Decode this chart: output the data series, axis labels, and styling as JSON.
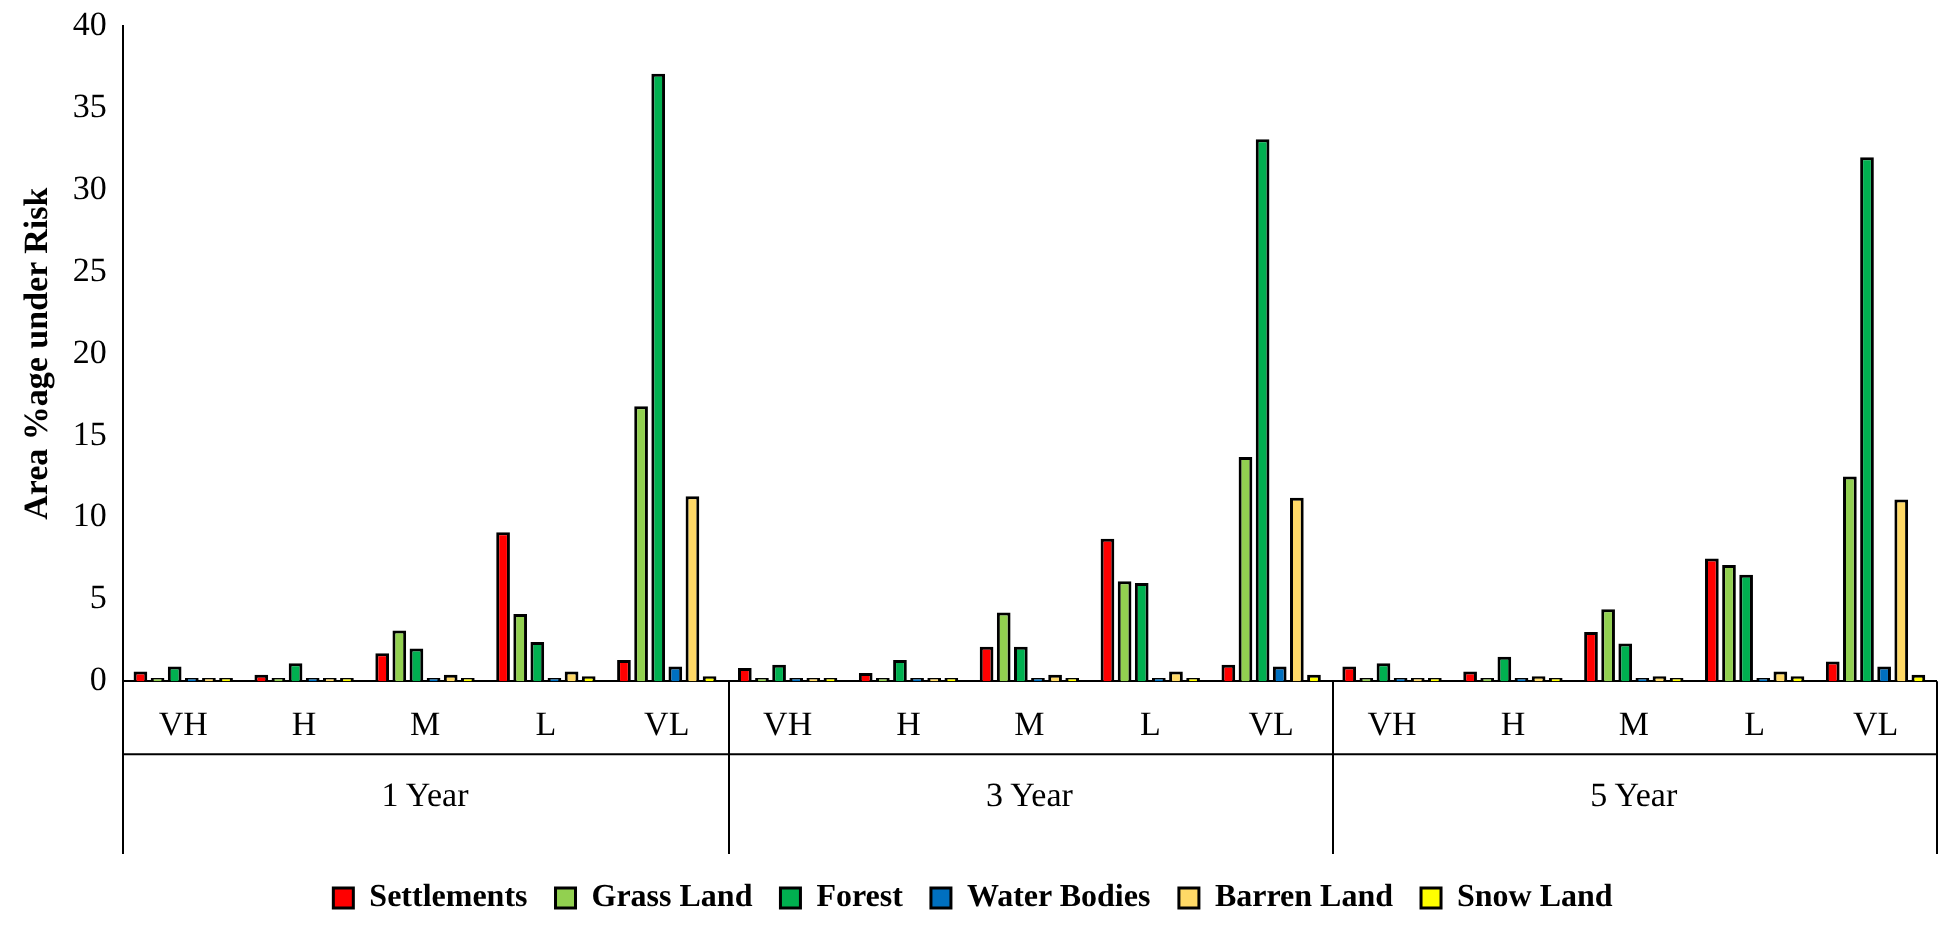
{
  "chart_data": {
    "type": "bar",
    "ylabel": "Area %age under Risk",
    "categories": [
      "VH",
      "H",
      "M",
      "L",
      "VL",
      "VH",
      "H",
      "M",
      "L",
      "VL",
      "VH",
      "H",
      "M",
      "L",
      "VL"
    ],
    "annotations": [
      "1 Year",
      "3 Year",
      "5 Year"
    ],
    "series": [
      {
        "name": "Settlements",
        "color": "#ff0000",
        "values": [
          0.6,
          0.4,
          1.7,
          9.1,
          1.3,
          0.8,
          0.5,
          2.1,
          8.7,
          1.0,
          0.9,
          0.6,
          3.0,
          7.5,
          1.2
        ]
      },
      {
        "name": "Grass Land",
        "color": "#92d050",
        "values": [
          0.2,
          0.2,
          3.1,
          4.1,
          16.8,
          0.2,
          0.2,
          4.2,
          6.1,
          13.7,
          0.2,
          0.2,
          4.4,
          7.1,
          12.5
        ]
      },
      {
        "name": "Forest",
        "color": "#00b050",
        "values": [
          0.9,
          1.1,
          2.0,
          2.4,
          37.1,
          1.0,
          1.3,
          2.1,
          6.0,
          33.1,
          1.1,
          1.5,
          2.3,
          6.5,
          32.0
        ]
      },
      {
        "name": "Water Bodies",
        "color": "#0070c0",
        "values": [
          0.2,
          0.2,
          0.2,
          0.2,
          0.9,
          0.2,
          0.2,
          0.2,
          0.2,
          0.9,
          0.2,
          0.2,
          0.2,
          0.2,
          0.9
        ]
      },
      {
        "name": "Barren Land",
        "color": "#ffd966",
        "values": [
          0.2,
          0.2,
          0.4,
          0.6,
          11.3,
          0.2,
          0.2,
          0.4,
          0.6,
          11.2,
          0.2,
          0.3,
          0.3,
          0.6,
          11.1
        ]
      },
      {
        "name": "Snow Land",
        "color": "#ffff00",
        "values": [
          0.2,
          0.2,
          0.2,
          0.3,
          0.3,
          0.2,
          0.2,
          0.2,
          0.2,
          0.4,
          0.2,
          0.2,
          0.2,
          0.3,
          0.4
        ]
      }
    ],
    "ylim": [
      0,
      40
    ],
    "yticks": [
      0,
      5,
      10,
      15,
      20,
      25,
      30,
      35,
      40
    ],
    "grid": false,
    "legend": "bottom"
  }
}
